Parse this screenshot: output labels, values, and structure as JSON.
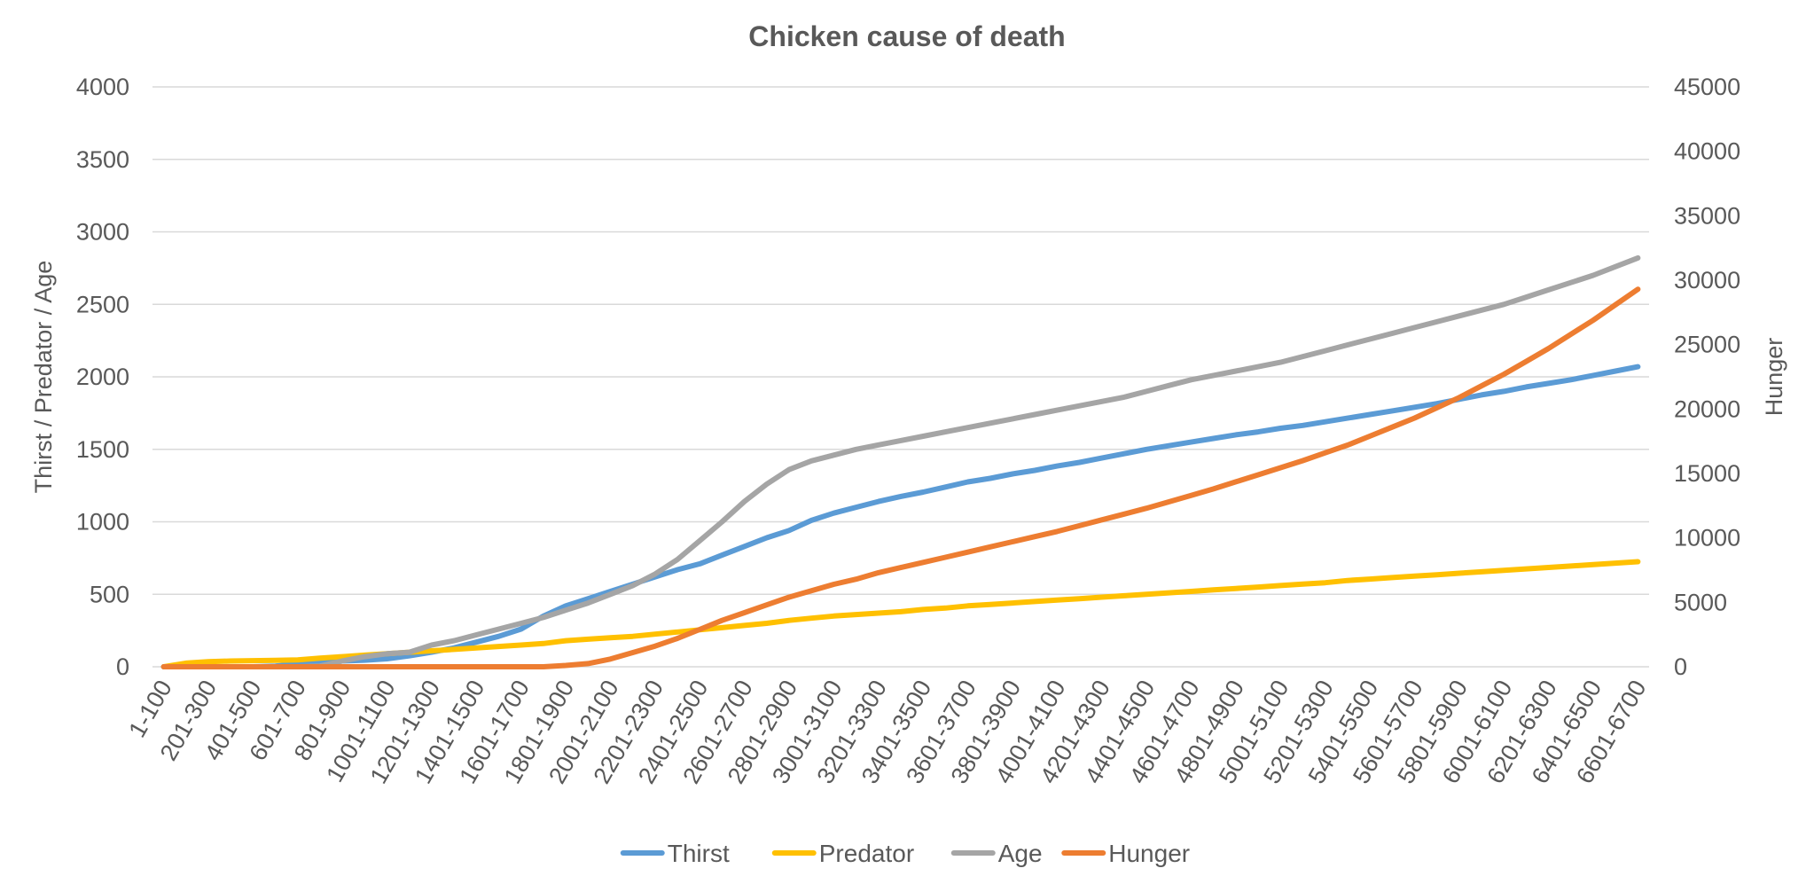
{
  "chart_data": {
    "type": "line",
    "title": "Chicken cause of death",
    "ylabel": "Thirst / Predator / Age",
    "y2label": "Hunger",
    "ylim": [
      0,
      4000
    ],
    "y2lim": [
      0,
      45000
    ],
    "yticks": [
      "0",
      "500",
      "1000",
      "1500",
      "2000",
      "2500",
      "3000",
      "3500",
      "4000"
    ],
    "y2ticks": [
      "0",
      "5000",
      "10000",
      "15000",
      "20000",
      "25000",
      "30000",
      "35000",
      "40000",
      "45000"
    ],
    "grid": true,
    "legend_position": "bottom",
    "x_tick_labels": [
      "1-100",
      "201-300",
      "401-500",
      "601-700",
      "801-900",
      "1001-1100",
      "1201-1300",
      "1401-1500",
      "1601-1700",
      "1801-1900",
      "2001-2100",
      "2201-2300",
      "2401-2500",
      "2601-2700",
      "2801-2900",
      "3001-3100",
      "3201-3300",
      "3401-3500",
      "3601-3700",
      "3801-3900",
      "4001-4100",
      "4201-4300",
      "4401-4500",
      "4601-4700",
      "4801-4900",
      "5001-5100",
      "5201-5300",
      "5401-5500",
      "5601-5700",
      "5801-5900",
      "6001-6100",
      "6201-6300",
      "6401-6500",
      "6601-6700"
    ],
    "x": [
      "1-100",
      "101-200",
      "201-300",
      "301-400",
      "401-500",
      "501-600",
      "601-700",
      "701-800",
      "801-900",
      "901-1000",
      "1001-1100",
      "1101-1200",
      "1201-1300",
      "1301-1400",
      "1401-1500",
      "1501-1600",
      "1601-1700",
      "1701-1800",
      "1801-1900",
      "1901-2000",
      "2001-2100",
      "2101-2200",
      "2201-2300",
      "2301-2400",
      "2401-2500",
      "2501-2600",
      "2601-2700",
      "2701-2800",
      "2801-2900",
      "2901-3000",
      "3001-3100",
      "3101-3200",
      "3201-3300",
      "3301-3400",
      "3401-3500",
      "3501-3600",
      "3601-3700",
      "3701-3800",
      "3801-3900",
      "3901-4000",
      "4001-4100",
      "4101-4200",
      "4201-4300",
      "4301-4400",
      "4401-4500",
      "4501-4600",
      "4601-4700",
      "4701-4800",
      "4801-4900",
      "4901-5000",
      "5001-5100",
      "5101-5200",
      "5201-5300",
      "5301-5400",
      "5401-5500",
      "5501-5600",
      "5601-5700",
      "5701-5800",
      "5801-5900",
      "5901-6000",
      "6001-6100",
      "6101-6200",
      "6201-6300",
      "6301-6400",
      "6401-6500",
      "6501-6600",
      "6601-6700"
    ],
    "series": [
      {
        "name": "Thirst",
        "axis": "left",
        "color": "#5B9BD5",
        "values": [
          0,
          0,
          0,
          0,
          0,
          5,
          20,
          30,
          40,
          45,
          55,
          75,
          100,
          130,
          170,
          210,
          260,
          350,
          420,
          470,
          520,
          570,
          620,
          670,
          710,
          770,
          830,
          890,
          940,
          1010,
          1060,
          1100,
          1140,
          1175,
          1205,
          1240,
          1275,
          1300,
          1330,
          1355,
          1385,
          1410,
          1440,
          1470,
          1500,
          1525,
          1550,
          1575,
          1600,
          1620,
          1645,
          1665,
          1690,
          1715,
          1740,
          1765,
          1790,
          1815,
          1845,
          1875,
          1900,
          1930,
          1955,
          1980,
          2010,
          2040,
          2070
        ]
      },
      {
        "name": "Predator",
        "axis": "left",
        "color": "#FFC000",
        "values": [
          0,
          25,
          35,
          40,
          42,
          44,
          48,
          60,
          70,
          80,
          90,
          100,
          110,
          120,
          130,
          140,
          150,
          160,
          180,
          190,
          200,
          210,
          225,
          240,
          255,
          270,
          285,
          300,
          320,
          335,
          350,
          360,
          370,
          380,
          395,
          405,
          420,
          430,
          440,
          450,
          460,
          470,
          480,
          490,
          500,
          510,
          520,
          530,
          540,
          550,
          560,
          570,
          580,
          595,
          605,
          615,
          625,
          635,
          645,
          655,
          665,
          675,
          685,
          695,
          705,
          715,
          725
        ]
      },
      {
        "name": "Age",
        "axis": "left",
        "color": "#A5A5A5",
        "values": [
          0,
          0,
          0,
          0,
          0,
          0,
          0,
          5,
          40,
          70,
          90,
          100,
          150,
          180,
          220,
          260,
          300,
          340,
          390,
          440,
          500,
          560,
          640,
          740,
          870,
          1000,
          1140,
          1260,
          1360,
          1420,
          1460,
          1500,
          1530,
          1560,
          1590,
          1620,
          1650,
          1680,
          1710,
          1740,
          1770,
          1800,
          1830,
          1860,
          1900,
          1940,
          1980,
          2010,
          2040,
          2070,
          2100,
          2140,
          2180,
          2220,
          2260,
          2300,
          2340,
          2380,
          2420,
          2460,
          2500,
          2550,
          2600,
          2650,
          2700,
          2760,
          2820
        ]
      },
      {
        "name": "Hunger",
        "axis": "right",
        "color": "#ED7D31",
        "values": [
          0,
          0,
          0,
          0,
          0,
          0,
          0,
          0,
          0,
          0,
          0,
          0,
          0,
          0,
          0,
          0,
          0,
          0,
          100,
          250,
          600,
          1100,
          1600,
          2200,
          2900,
          3600,
          4200,
          4800,
          5400,
          5900,
          6400,
          6800,
          7300,
          7700,
          8100,
          8500,
          8900,
          9300,
          9700,
          10100,
          10500,
          10950,
          11400,
          11850,
          12300,
          12800,
          13300,
          13800,
          14350,
          14900,
          15450,
          16000,
          16600,
          17200,
          17900,
          18600,
          19300,
          20100,
          20900,
          21800,
          22700,
          23700,
          24700,
          25800,
          26900,
          28100,
          29300
        ]
      }
    ]
  }
}
